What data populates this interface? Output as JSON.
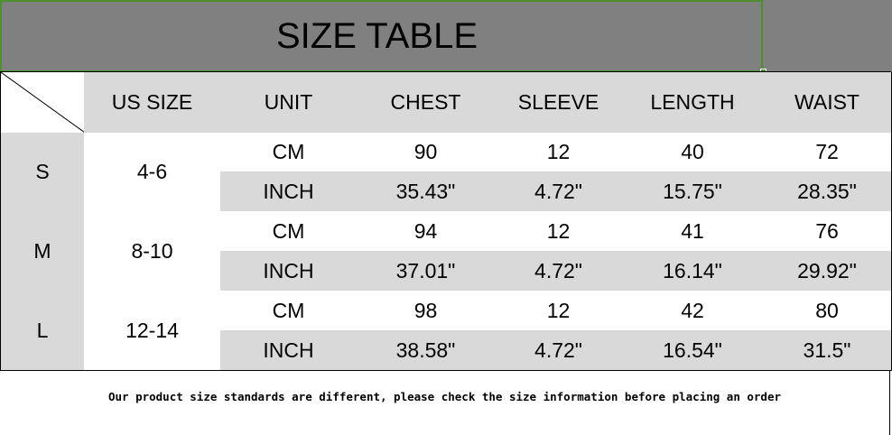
{
  "title": "SIZE TABLE",
  "headers": [
    "US SIZE",
    "UNIT",
    "CHEST",
    "SLEEVE",
    "LENGTH",
    "WAIST"
  ],
  "sizes": [
    {
      "size": "S",
      "us_size": "4-6",
      "cm": [
        "CM",
        "90",
        "12",
        "40",
        "72"
      ],
      "inch": [
        "INCH",
        "35.43\"",
        "4.72\"",
        "15.75\"",
        "28.35\""
      ]
    },
    {
      "size": "M",
      "us_size": "8-10",
      "cm": [
        "CM",
        "94",
        "12",
        "41",
        "76"
      ],
      "inch": [
        "INCH",
        "37.01\"",
        "4.72\"",
        "16.14\"",
        "29.92\""
      ]
    },
    {
      "size": "L",
      "us_size": "12-14",
      "cm": [
        "CM",
        "98",
        "12",
        "42",
        "80"
      ],
      "inch": [
        "INCH",
        "38.58\"",
        "4.72\"",
        "16.54\"",
        "31.5\""
      ]
    }
  ],
  "footer_note": "Our product size standards are different, please check the size information before placing an order",
  "colors": {
    "title_bg": "#808080",
    "header_bg": "#d9d9d9",
    "selection_border": "#4e8f2f"
  }
}
